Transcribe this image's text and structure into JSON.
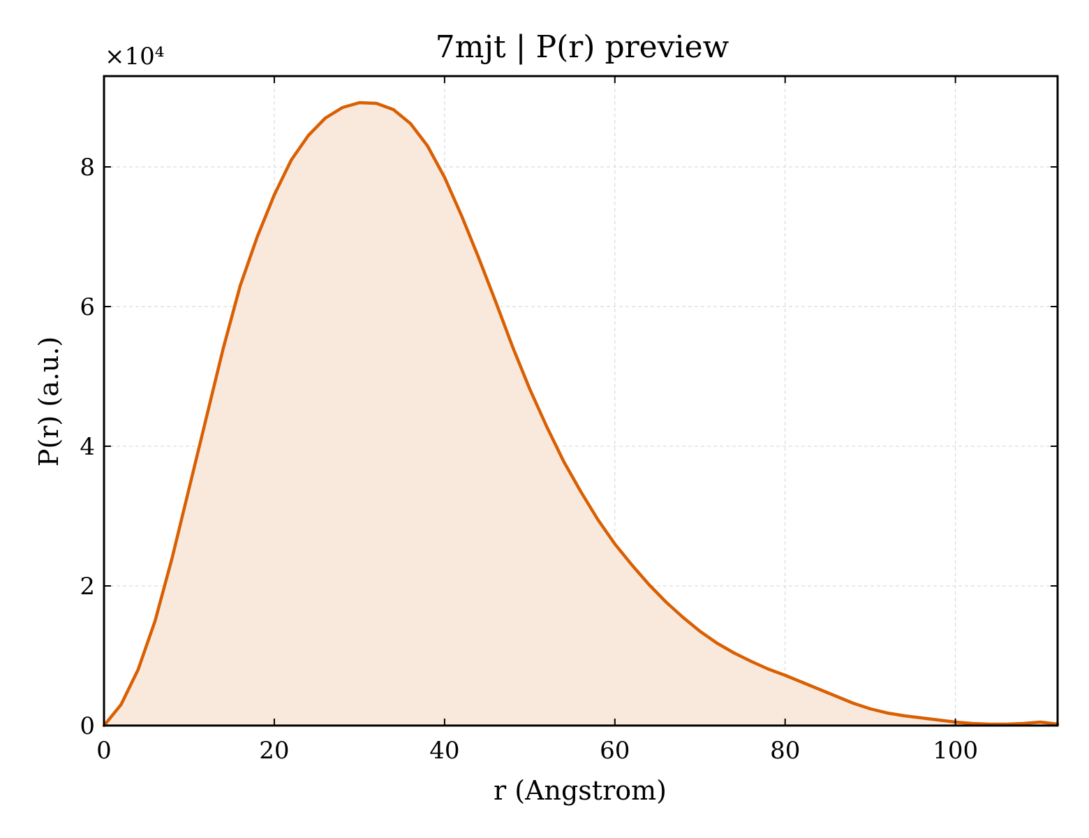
{
  "chart_data": {
    "type": "area",
    "title": "7mjt | P(r) preview",
    "xlabel": "r (Angstrom)",
    "ylabel": "P(r) (a.u.)",
    "y_multiplier": "×10⁴",
    "xlim": [
      0,
      112
    ],
    "ylim": [
      0,
      9.3
    ],
    "x_ticks": [
      0,
      20,
      40,
      60,
      80,
      100
    ],
    "y_ticks": [
      0,
      2,
      4,
      6,
      8
    ],
    "grid": true,
    "legend": "none",
    "series": [
      {
        "values_x": [
          0,
          2,
          4,
          6,
          8,
          10,
          12,
          14,
          16,
          18,
          20,
          22,
          24,
          26,
          28,
          30,
          32,
          34,
          36,
          38,
          40,
          42,
          44,
          46,
          48,
          50,
          52,
          54,
          56,
          58,
          60,
          62,
          64,
          66,
          68,
          70,
          72,
          74,
          76,
          78,
          80,
          82,
          84,
          86,
          88,
          90,
          92,
          94,
          96,
          98,
          100,
          102,
          104,
          106,
          108,
          110,
          112
        ],
        "values_y": [
          0,
          0.3,
          0.8,
          1.5,
          2.4,
          3.4,
          4.4,
          5.4,
          6.3,
          7.0,
          7.6,
          8.1,
          8.45,
          8.7,
          8.85,
          8.92,
          8.91,
          8.82,
          8.62,
          8.3,
          7.85,
          7.3,
          6.7,
          6.07,
          5.42,
          4.82,
          4.28,
          3.78,
          3.35,
          2.95,
          2.6,
          2.3,
          2.02,
          1.77,
          1.55,
          1.35,
          1.18,
          1.04,
          0.92,
          0.81,
          0.72,
          0.62,
          0.52,
          0.42,
          0.32,
          0.24,
          0.18,
          0.14,
          0.11,
          0.08,
          0.05,
          0.03,
          0.02,
          0.02,
          0.03,
          0.05,
          0.02
        ]
      }
    ],
    "colors": {
      "line": "#d95f02",
      "fill": "#f9e9dd",
      "grid": "#d3d3d3",
      "axis": "#000000"
    }
  }
}
